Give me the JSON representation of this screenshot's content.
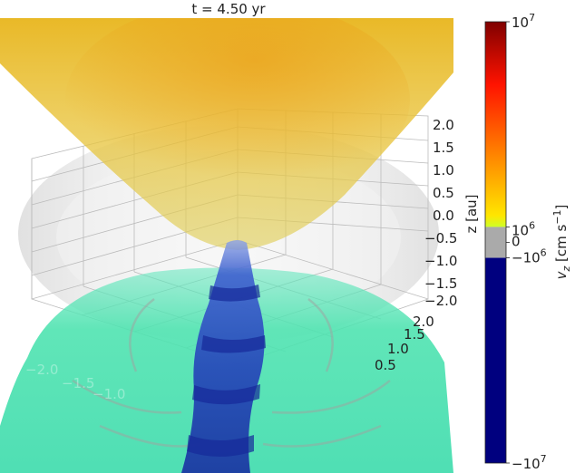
{
  "chart_data": {
    "type": "volume-render-3d",
    "title": "t = 4.50 yr",
    "z_axis": {
      "label": "z [au]",
      "range": [
        -2.0,
        2.0
      ],
      "ticks": [
        "2.0",
        "1.5",
        "1.0",
        "0.5",
        "0.0",
        "−0.5",
        "−1.0",
        "−1.5",
        "−2.0"
      ]
    },
    "y_axis": {
      "range": [
        -2.0,
        2.0
      ],
      "ticks": [
        "2.0",
        "1.5",
        "1.0",
        "0.5"
      ]
    },
    "x_axis": {
      "range": [
        -2.0,
        2.0
      ],
      "ticks": [
        "−2.0",
        "−1.5",
        "−1.0"
      ]
    },
    "colorbar": {
      "label_main": "v",
      "label_sub": "z",
      "label_units": " [cm s",
      "label_exp": "−1",
      "label_close": "]",
      "colormap": "jet",
      "range": [
        -10000000,
        10000000
      ],
      "null_band": [
        -1000000,
        1000000
      ],
      "null_color": "#aaaaaa",
      "ticks": [
        {
          "value": 10000000,
          "base": "10",
          "exp": "7"
        },
        {
          "value": 1000000,
          "base": "10",
          "exp": "6"
        },
        {
          "value": 0,
          "base": "0",
          "exp": ""
        },
        {
          "value": -1000000,
          "base": "−10",
          "exp": "6"
        },
        {
          "value": -10000000,
          "base": "−10",
          "exp": "7"
        }
      ]
    },
    "components": [
      {
        "name": "upper outflow lobe",
        "vz_cm_s": 2500000,
        "color": "#e6c61c"
      },
      {
        "name": "lower lobe",
        "vz_cm_s": -1300000,
        "color": "#4fe3b0"
      },
      {
        "name": "central jet",
        "vz_cm_s": -8000000,
        "color": "#1a3fb8"
      }
    ]
  }
}
